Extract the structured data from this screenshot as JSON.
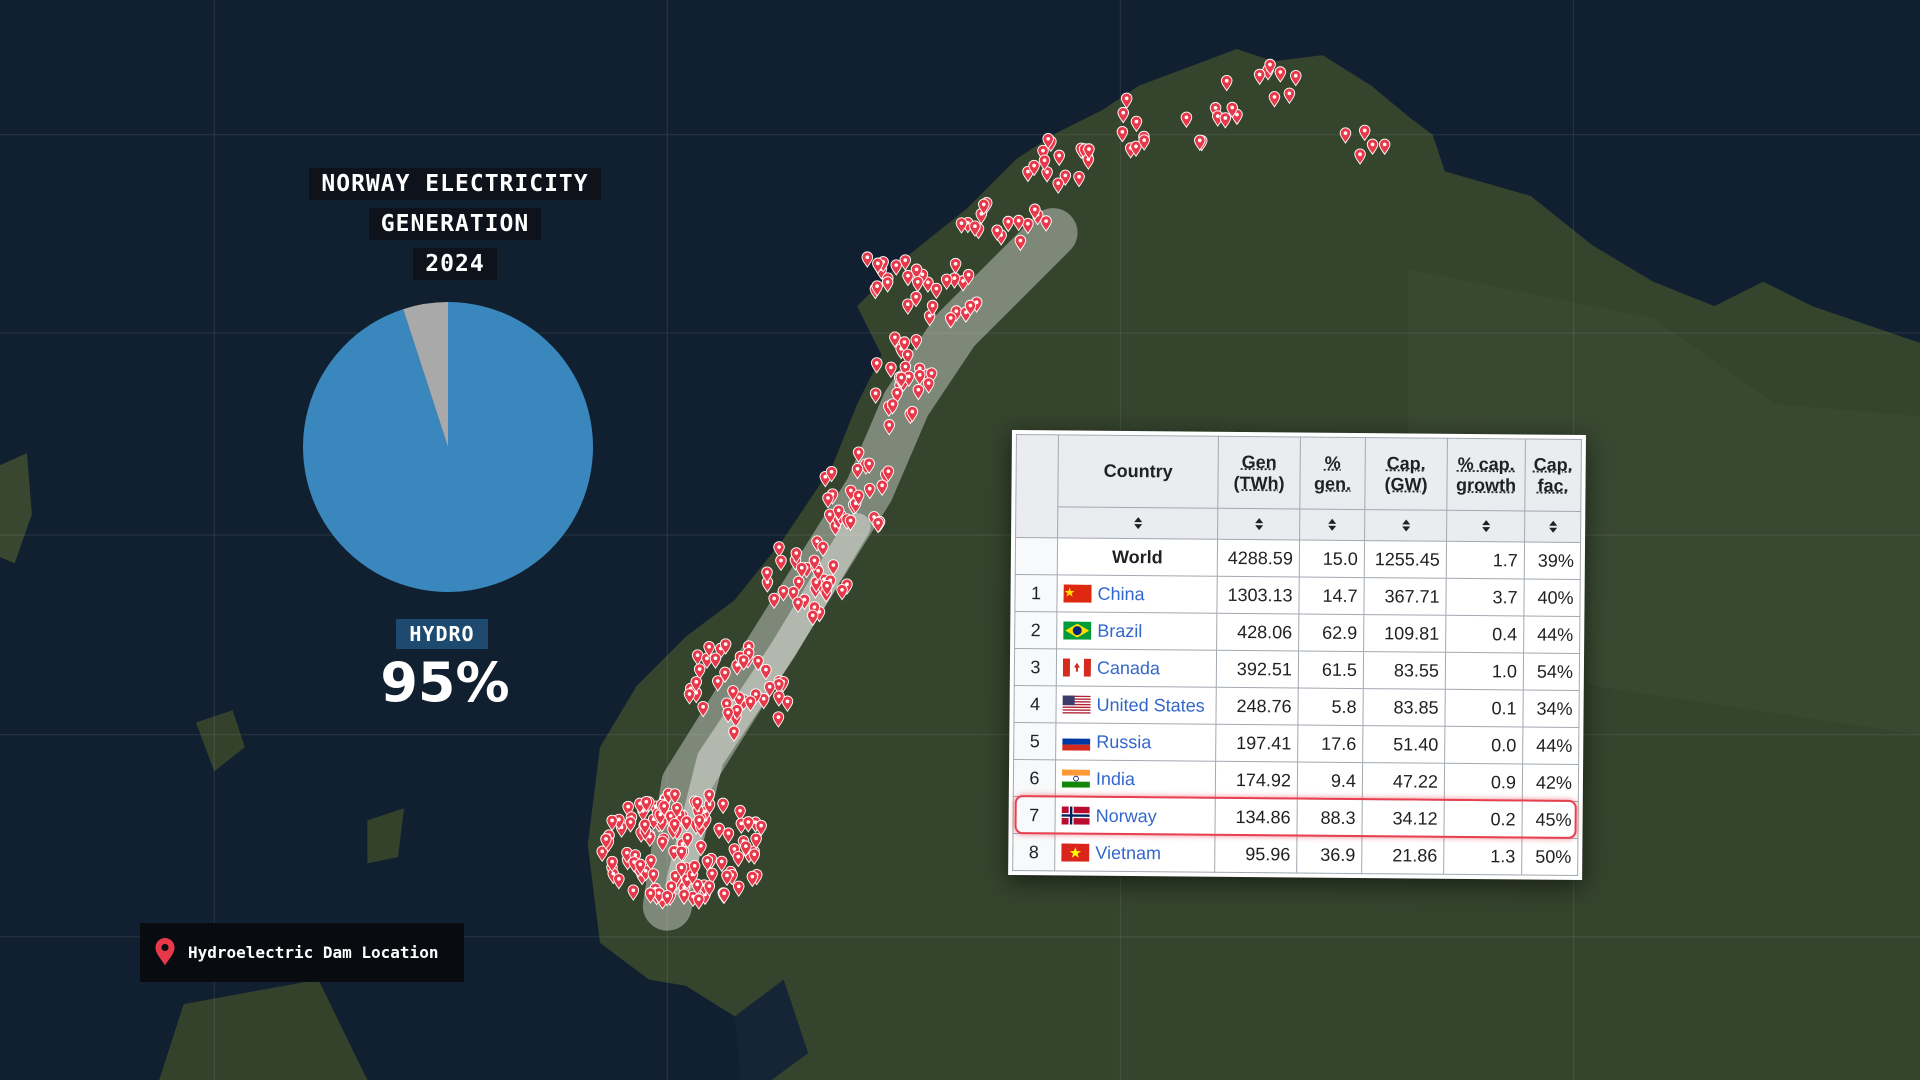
{
  "chart_data": {
    "type": "pie",
    "title": "NORWAY ELECTRICITY GENERATION",
    "subtitle": "2024",
    "categories": [
      "HYDRO",
      null
    ],
    "values": [
      95,
      5
    ],
    "value_labels": [
      "95%",
      null
    ],
    "colors": [
      "#3a87bd",
      "#a9a9a9"
    ]
  },
  "map_legend": {
    "label": "Hydroelectric Dam Location"
  },
  "table": {
    "headers": [
      "Country",
      "Gen (TWh)",
      "% gen.",
      "Cap. (GW)",
      "% cap. growth",
      "Cap. fac."
    ],
    "rows": [
      {
        "country": "World",
        "cells": [
          "4288.59",
          "15.0",
          "1255.45",
          "1.7",
          "39%"
        ]
      },
      {
        "rank": 1,
        "country": "China",
        "cells": [
          "1303.13",
          "14.7",
          "367.71",
          "3.7",
          "40%"
        ]
      },
      {
        "rank": 2,
        "country": "Brazil",
        "cells": [
          "428.06",
          "62.9",
          "109.81",
          "0.4",
          "44%"
        ]
      },
      {
        "rank": 3,
        "country": "Canada",
        "cells": [
          "392.51",
          "61.5",
          "83.55",
          "1.0",
          "54%"
        ]
      },
      {
        "rank": 4,
        "country": "United States",
        "cells": [
          "248.76",
          "5.8",
          "83.85",
          "0.1",
          "34%"
        ]
      },
      {
        "rank": 5,
        "country": "Russia",
        "cells": [
          "197.41",
          "17.6",
          "51.40",
          "0.0",
          "44%"
        ]
      },
      {
        "rank": 6,
        "country": "India",
        "cells": [
          "174.92",
          "9.4",
          "47.22",
          "0.9",
          "42%"
        ]
      },
      {
        "rank": 7,
        "country": "Norway",
        "cells": [
          "134.86",
          "88.3",
          "34.12",
          "0.2",
          "45%"
        ],
        "highlighted": true
      },
      {
        "rank": 8,
        "country": "Vietnam",
        "cells": [
          "95.96",
          "36.9",
          "21.86",
          "1.3",
          "50%"
        ]
      }
    ]
  }
}
